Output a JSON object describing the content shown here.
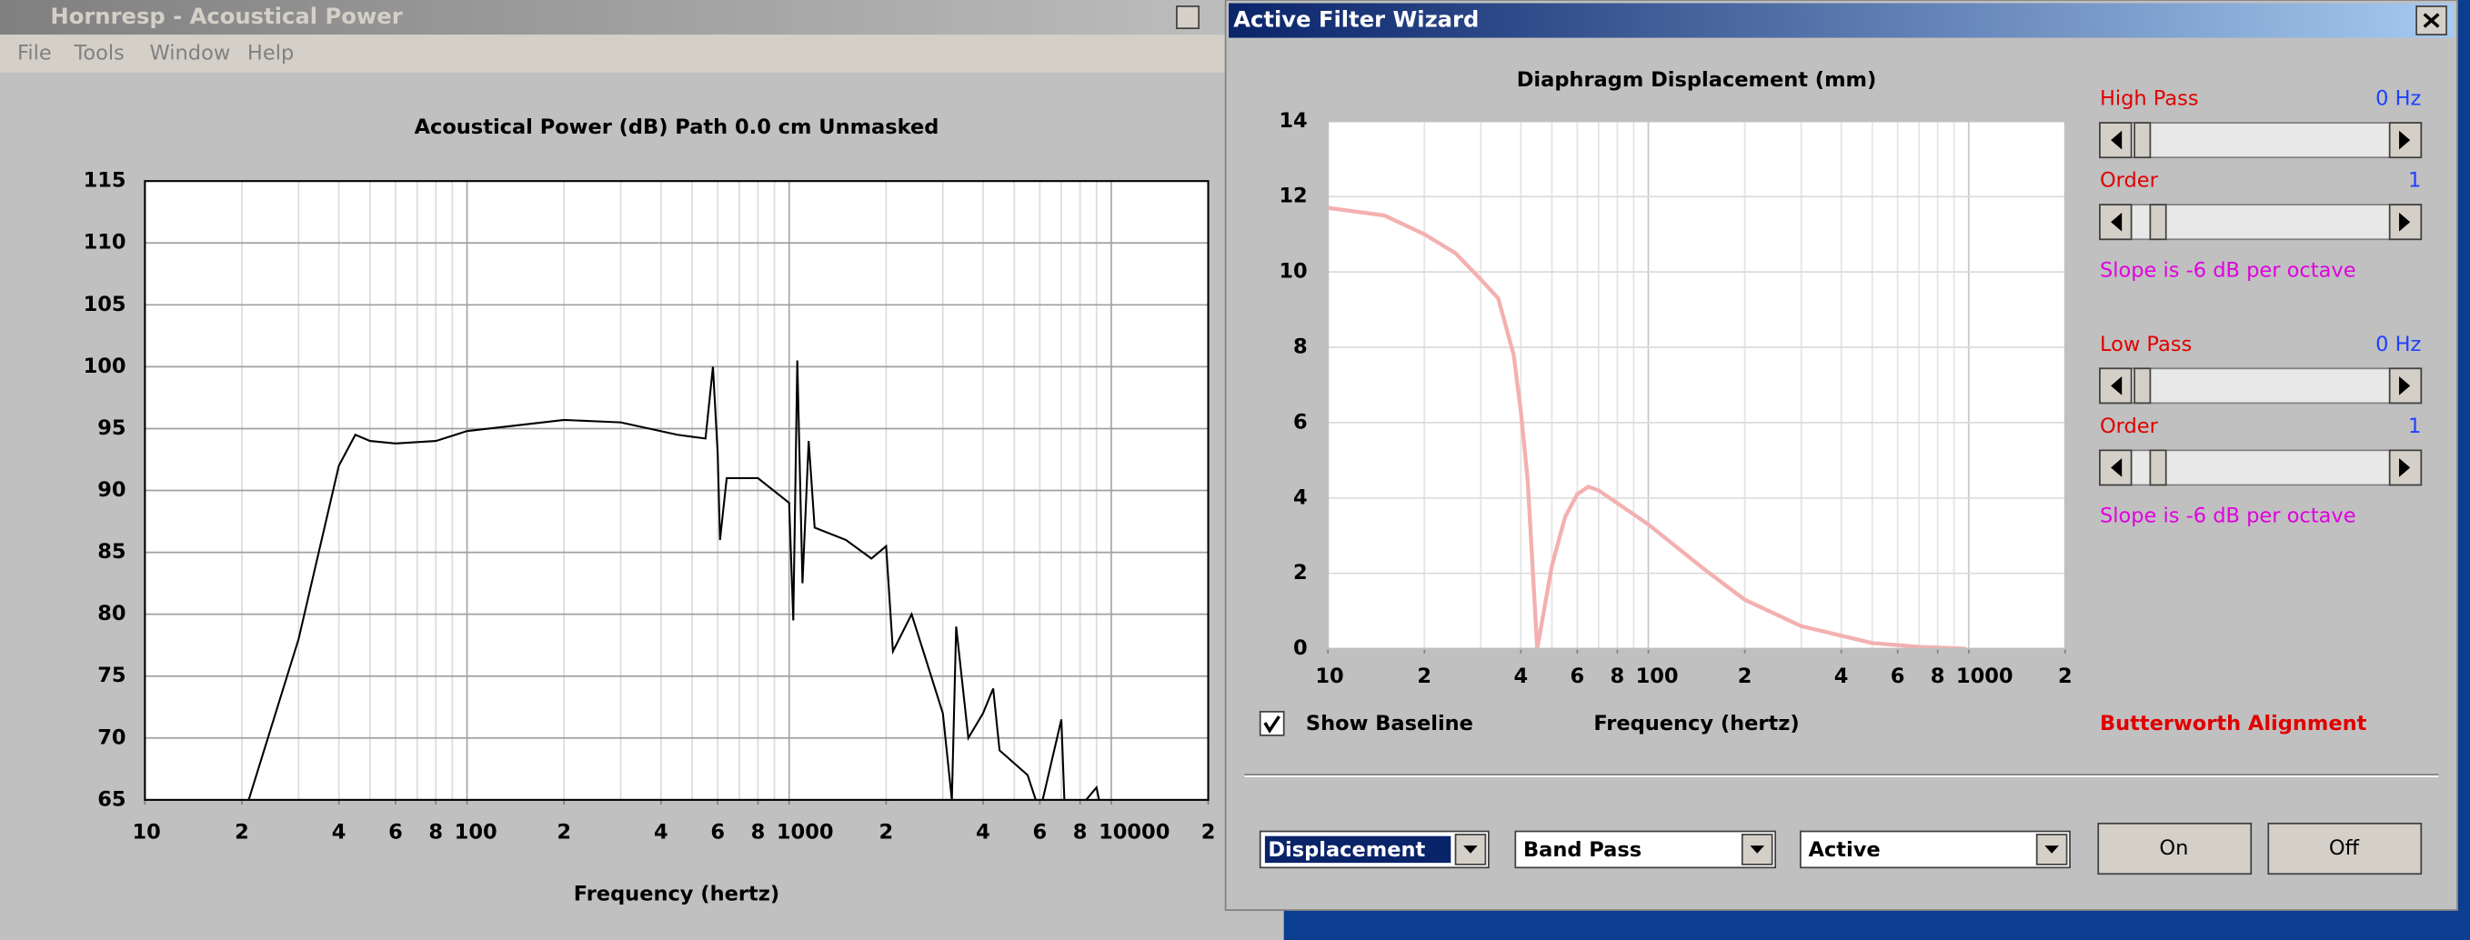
{
  "window": {
    "title": "Hornresp - Acoustical Power",
    "menu": [
      "File",
      "Tools",
      "Window",
      "Help"
    ]
  },
  "dialog": {
    "title": "Active Filter Wizard",
    "high_pass": {
      "label": "High Pass",
      "value": "0 Hz",
      "order_label": "Order",
      "order": "1",
      "slope": "Slope is -6 dB per octave"
    },
    "low_pass": {
      "label": "Low Pass",
      "value": "0 Hz",
      "order_label": "Order",
      "order": "1",
      "slope": "Slope is -6 dB per octave"
    },
    "show_baseline": "Show Baseline",
    "alignment": "Butterworth Alignment",
    "dropdowns": [
      "Displacement",
      "Band Pass",
      "Active"
    ],
    "buttons": [
      "On",
      "Off"
    ]
  },
  "chart_data": [
    {
      "type": "line",
      "title": "Acoustical Power (dB)   Path 0.0 cm   Unmasked",
      "xlabel": "Frequency (hertz)",
      "xscale": "log",
      "xlim": [
        10,
        20000
      ],
      "xticks": [
        10,
        {
          "value": 20,
          "label": "2"
        },
        {
          "value": 40,
          "label": "4"
        },
        {
          "value": 60,
          "label": "6"
        },
        {
          "value": 80,
          "label": "8"
        },
        100,
        {
          "value": 200,
          "label": "2"
        },
        {
          "value": 400,
          "label": "4"
        },
        {
          "value": 600,
          "label": "6"
        },
        {
          "value": 800,
          "label": "8"
        },
        1000,
        {
          "value": 2000,
          "label": "2"
        },
        {
          "value": 4000,
          "label": "4"
        },
        {
          "value": 6000,
          "label": "6"
        },
        {
          "value": 8000,
          "label": "8"
        },
        10000,
        {
          "value": 20000,
          "label": "2"
        }
      ],
      "ylim": [
        65,
        115
      ],
      "yticks": [
        65,
        70,
        75,
        80,
        85,
        90,
        95,
        100,
        105,
        110,
        115
      ],
      "grid": true,
      "x": [
        21,
        30,
        40,
        45,
        50,
        60,
        80,
        100,
        200,
        300,
        450,
        550,
        580,
        600,
        610,
        640,
        800,
        1000,
        1030,
        1060,
        1100,
        1150,
        1200,
        1500,
        1800,
        2000,
        2100,
        2400,
        3000,
        3200,
        3300,
        3600,
        4000,
        4300,
        4500,
        5500,
        6000,
        7000,
        7200,
        9000,
        9500
      ],
      "series": [
        {
          "color": "#000000",
          "values": [
            65,
            78,
            92,
            94.5,
            94,
            93.8,
            94,
            94.8,
            95.7,
            95.5,
            94.5,
            94.2,
            100,
            93,
            86,
            91,
            91,
            89,
            79.5,
            100.5,
            82.5,
            94,
            87,
            86,
            84.5,
            85.5,
            77,
            80,
            72,
            65,
            79,
            70,
            72,
            74,
            69,
            67,
            64,
            71.5,
            63,
            66,
            63
          ]
        }
      ]
    },
    {
      "type": "line",
      "title": "Diaphragm Displacement (mm)",
      "xlabel": "Frequency (hertz)",
      "xscale": "log",
      "xlim": [
        10,
        2000
      ],
      "xticks": [
        10,
        {
          "value": 20,
          "label": "2"
        },
        {
          "value": 40,
          "label": "4"
        },
        {
          "value": 60,
          "label": "6"
        },
        {
          "value": 80,
          "label": "8"
        },
        100,
        {
          "value": 200,
          "label": "2"
        },
        {
          "value": 400,
          "label": "4"
        },
        {
          "value": 600,
          "label": "6"
        },
        {
          "value": 800,
          "label": "8"
        },
        1000,
        {
          "value": 2000,
          "label": "2"
        }
      ],
      "ylim": [
        0,
        14
      ],
      "yticks": [
        0,
        2,
        4,
        6,
        8,
        10,
        12,
        14
      ],
      "grid": true,
      "x": [
        10,
        15,
        20,
        25,
        30,
        34,
        38,
        40,
        42,
        45,
        50,
        55,
        60,
        65,
        70,
        100,
        150,
        200,
        300,
        500,
        700,
        980
      ],
      "series": [
        {
          "color": "#f4b0b0",
          "values": [
            11.7,
            11.5,
            11.0,
            10.5,
            9.8,
            9.3,
            7.8,
            6.3,
            4.5,
            0,
            2.2,
            3.5,
            4.1,
            4.3,
            4.2,
            3.3,
            2.1,
            1.3,
            0.6,
            0.15,
            0.05,
            0
          ]
        }
      ]
    }
  ]
}
